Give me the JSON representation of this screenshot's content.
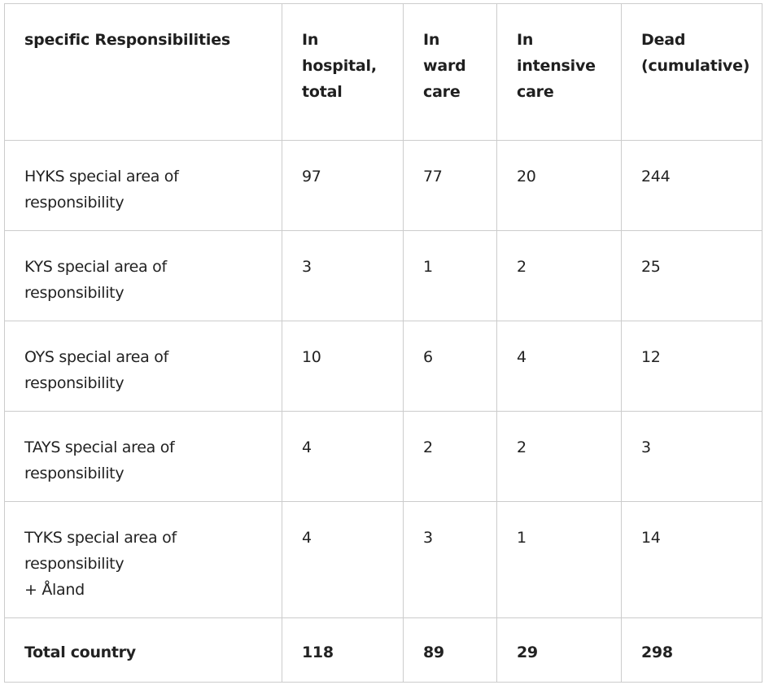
{
  "table": {
    "headers": [
      {
        "lines": [
          "specific Responsibilities"
        ]
      },
      {
        "lines": [
          "In",
          "hospital,",
          "total"
        ]
      },
      {
        "lines": [
          "In",
          "ward",
          "care"
        ]
      },
      {
        "lines": [
          "In",
          "intensive",
          "care"
        ]
      },
      {
        "lines": [
          "Dead",
          "(cumulative)"
        ]
      }
    ],
    "rows": [
      {
        "area_lines": [
          "HYKS  special area of",
          "responsibility"
        ],
        "in_hospital_total": "97",
        "in_ward_care": "77",
        "in_intensive_care": "20",
        "dead_cumulative": "244"
      },
      {
        "area_lines": [
          "KYS special area of",
          "responsibility"
        ],
        "in_hospital_total": "3",
        "in_ward_care": "1",
        "in_intensive_care": "2",
        "dead_cumulative": "25"
      },
      {
        "area_lines": [
          "OYS special area of",
          "responsibility"
        ],
        "in_hospital_total": "10",
        "in_ward_care": "6",
        "in_intensive_care": "4",
        "dead_cumulative": "12"
      },
      {
        "area_lines": [
          "TAYS special area of",
          "responsibility"
        ],
        "in_hospital_total": "4",
        "in_ward_care": "2",
        "in_intensive_care": "2",
        "dead_cumulative": "3"
      },
      {
        "area_lines": [
          "TYKS special area of",
          "responsibility",
          "+ Åland"
        ],
        "in_hospital_total": "4",
        "in_ward_care": "3",
        "in_intensive_care": "1",
        "dead_cumulative": "14"
      }
    ],
    "total": {
      "label": "Total country",
      "in_hospital_total": "118",
      "in_ward_care": "89",
      "in_intensive_care": "29",
      "dead_cumulative": "298"
    }
  },
  "colors": {
    "border": "#cccccc",
    "text": "#222222",
    "background": "#ffffff"
  }
}
